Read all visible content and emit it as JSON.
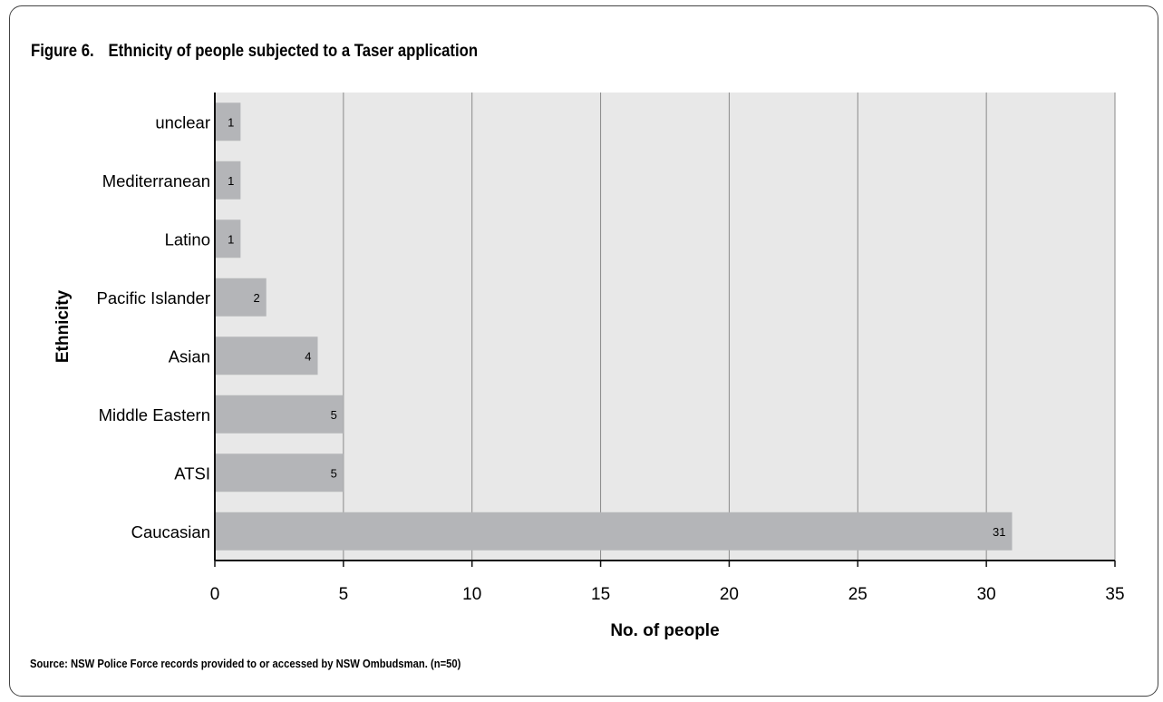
{
  "figure": {
    "number": "Figure 6.",
    "title": "Ethnicity of people subjected to a Taser application",
    "source": "Source: NSW Police Force records provided to or accessed by NSW Ombudsman. (n=50)"
  },
  "colors": {
    "plot_background": "#e8e8e8",
    "bar": "#b4b5b8",
    "grid": "#8a8a8a",
    "axis": "#111111"
  },
  "chart_data": {
    "type": "bar",
    "orientation": "horizontal",
    "title": "Ethnicity of people subjected to a Taser application",
    "xlabel": "No. of people",
    "ylabel": "Ethnicity",
    "categories": [
      "unclear",
      "Mediterranean",
      "Latino",
      "Pacific Islander",
      "Asian",
      "Middle Eastern",
      "ATSI",
      "Caucasian"
    ],
    "values": [
      1,
      1,
      1,
      2,
      4,
      5,
      5,
      31
    ],
    "xlim": [
      0,
      35
    ],
    "xticks": [
      0,
      5,
      10,
      15,
      20,
      25,
      30,
      35
    ],
    "grid": "vertical",
    "data_labels": true
  }
}
